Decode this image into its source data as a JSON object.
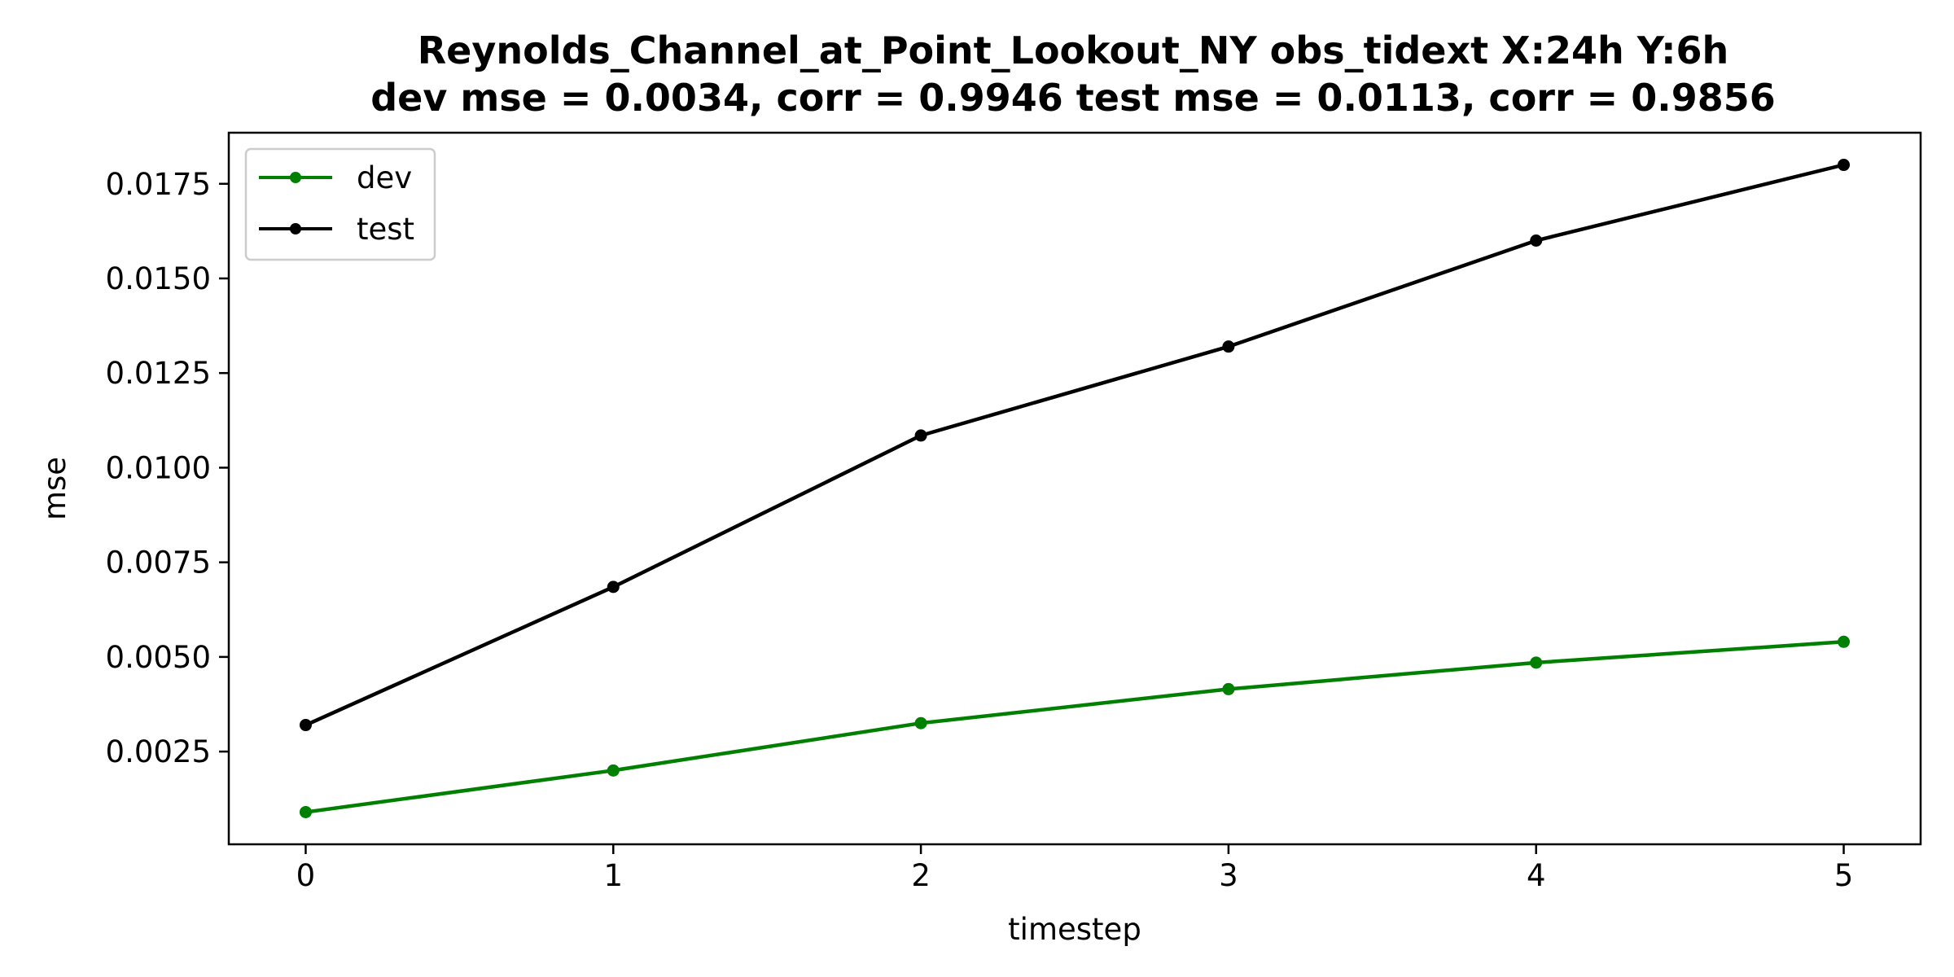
{
  "chart_data": {
    "type": "line",
    "title_line1": "Reynolds_Channel_at_Point_Lookout_NY   obs_tidext   X:24h   Y:6h",
    "title_line2": "dev mse = 0.0034, corr = 0.9946   test mse = 0.0113, corr = 0.9856",
    "xlabel": "timestep",
    "ylabel": "mse",
    "x": [
      0,
      1,
      2,
      3,
      4,
      5
    ],
    "x_ticks": [
      "0",
      "1",
      "2",
      "3",
      "4",
      "5"
    ],
    "y_ticks": [
      "0.0025",
      "0.0050",
      "0.0075",
      "0.0100",
      "0.0125",
      "0.0150",
      "0.0175"
    ],
    "y_tick_values": [
      0.0025,
      0.005,
      0.0075,
      0.01,
      0.0125,
      0.015,
      0.0175
    ],
    "xlim": [
      -0.25,
      5.25
    ],
    "ylim": [
      5e-05,
      0.01885
    ],
    "grid": false,
    "legend_position": "top-left",
    "series": [
      {
        "name": "dev",
        "color": "#008000",
        "values": [
          0.0009,
          0.002,
          0.00325,
          0.00415,
          0.00485,
          0.0054
        ]
      },
      {
        "name": "test",
        "color": "#000000",
        "values": [
          0.0032,
          0.00685,
          0.01085,
          0.0132,
          0.016,
          0.018
        ]
      }
    ]
  }
}
